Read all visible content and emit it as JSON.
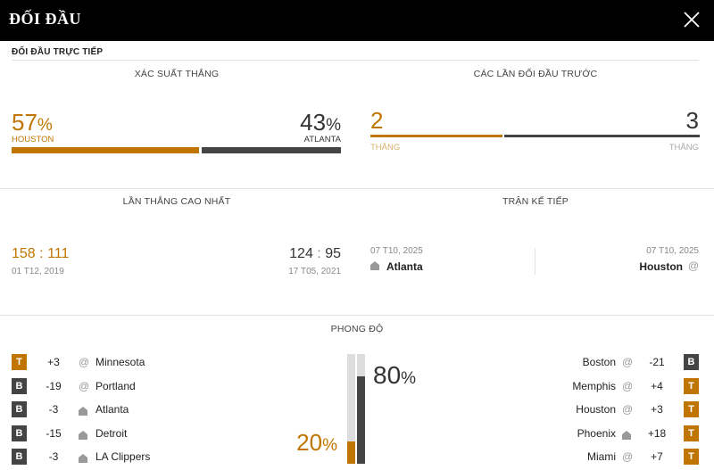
{
  "header": {
    "title": "ĐỐI ĐẦU"
  },
  "section": {
    "label": "ĐỐI ĐẦU TRỰC TIẾP"
  },
  "win_prob": {
    "heading": "XÁC SUẤT THẮNG",
    "home": {
      "value": "57",
      "pct": "%",
      "team": "HOUSTON",
      "fraction": 0.57
    },
    "away": {
      "value": "43",
      "pct": "%",
      "team": "ATLANTA",
      "fraction": 0.43
    }
  },
  "previous": {
    "heading": "CÁC LẦN ĐỐI ĐẦU TRƯỚC",
    "home": {
      "wins": "2",
      "label": "THẮNG"
    },
    "away": {
      "wins": "3",
      "label": "THẮNG"
    }
  },
  "biggest_win": {
    "heading": "LẦN THẮNG CAO NHẤT",
    "home": {
      "score_a": "158",
      "sep": ":",
      "score_b": "111",
      "date": "01 T12, 2019"
    },
    "away": {
      "score_a": "124",
      "sep": ":",
      "score_b": "95",
      "date": "17 T05, 2021"
    }
  },
  "next_game": {
    "heading": "TRẬN KẾ TIẾP",
    "left": {
      "date": "07 T10, 2025",
      "team": "Atlanta"
    },
    "right": {
      "date": "07 T10, 2025",
      "team": "Houston",
      "at": "@"
    }
  },
  "form": {
    "heading": "PHONG ĐỘ",
    "home_pct": {
      "value": "20",
      "pct": "%",
      "fraction": 0.2
    },
    "away_pct": {
      "value": "80",
      "pct": "%",
      "fraction": 0.8
    },
    "home_games": [
      {
        "result": "T",
        "diff": "+3",
        "loc": "@",
        "team": "Minnesota"
      },
      {
        "result": "B",
        "diff": "-19",
        "loc": "@",
        "team": "Portland"
      },
      {
        "result": "B",
        "diff": "-3",
        "loc": "home",
        "team": "Atlanta"
      },
      {
        "result": "B",
        "diff": "-15",
        "loc": "home",
        "team": "Detroit"
      },
      {
        "result": "B",
        "diff": "-3",
        "loc": "home",
        "team": "LA Clippers"
      }
    ],
    "away_games": [
      {
        "result": "B",
        "diff": "-21",
        "loc": "@",
        "team": "Boston"
      },
      {
        "result": "T",
        "diff": "+4",
        "loc": "@",
        "team": "Memphis"
      },
      {
        "result": "T",
        "diff": "+3",
        "loc": "@",
        "team": "Houston"
      },
      {
        "result": "T",
        "diff": "+18",
        "loc": "home",
        "team": "Phoenix"
      },
      {
        "result": "T",
        "diff": "+7",
        "loc": "@",
        "team": "Miami"
      }
    ]
  },
  "colors": {
    "accent": "#c07500",
    "dark": "#444444",
    "bar_bg": "#dddddd"
  }
}
